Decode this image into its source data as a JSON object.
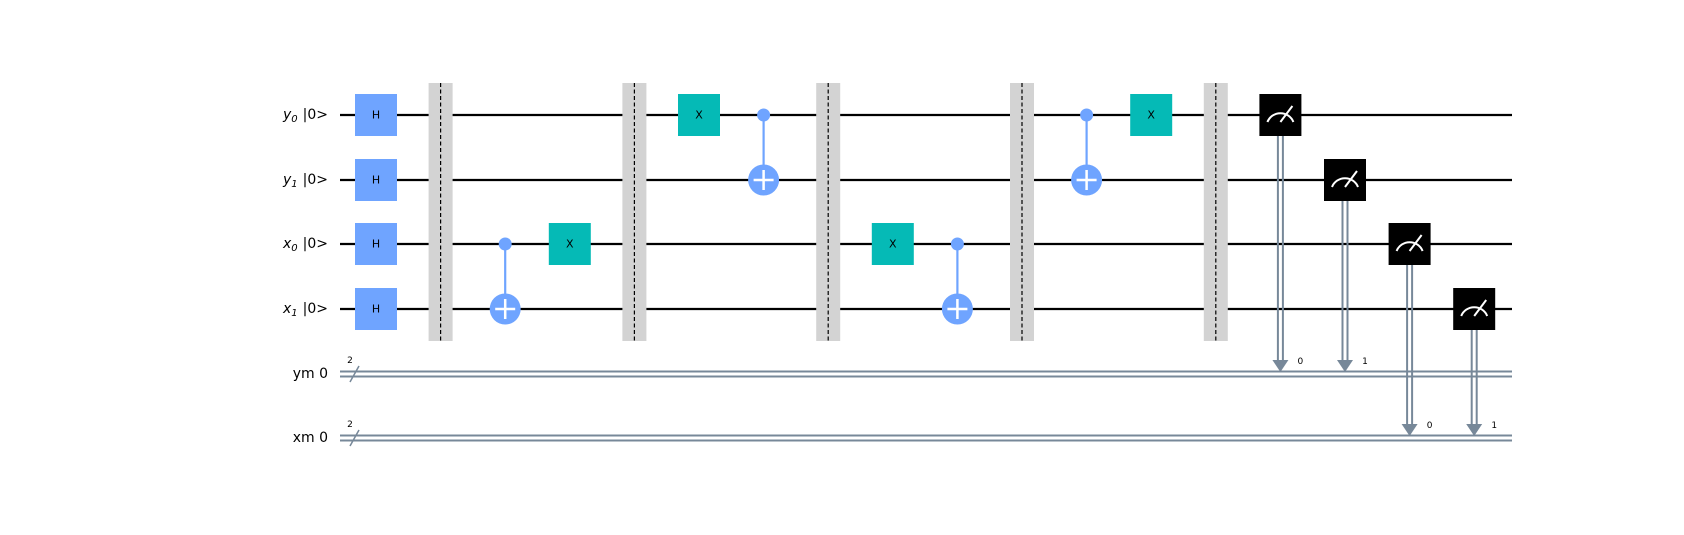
{
  "colors": {
    "wire": "#000000",
    "classical_wire": "#778899",
    "hadamard": "#6fa4ff",
    "x_gate": "#05bab6",
    "control": "#6fa4ff",
    "barrier": "#d3d3d3",
    "measure": "#000000"
  },
  "qubits": [
    {
      "name": "y",
      "index": "0",
      "state": "|0>"
    },
    {
      "name": "y",
      "index": "1",
      "state": "|0>"
    },
    {
      "name": "x",
      "index": "0",
      "state": "|0>"
    },
    {
      "name": "x",
      "index": "1",
      "state": "|0>"
    }
  ],
  "clbits": [
    {
      "label": "ym 0",
      "size": "2"
    },
    {
      "label": "xm 0",
      "size": "2"
    }
  ],
  "gates": {
    "h_label": "H",
    "x_label": "X"
  },
  "circuit": [
    {
      "type": "h",
      "qubit": 0,
      "col": 0
    },
    {
      "type": "h",
      "qubit": 1,
      "col": 0
    },
    {
      "type": "h",
      "qubit": 2,
      "col": 0
    },
    {
      "type": "h",
      "qubit": 3,
      "col": 0
    },
    {
      "type": "barrier",
      "col": 1
    },
    {
      "type": "cx",
      "control": 2,
      "target": 3,
      "col": 2
    },
    {
      "type": "x",
      "qubit": 2,
      "col": 3
    },
    {
      "type": "barrier",
      "col": 4
    },
    {
      "type": "x",
      "qubit": 0,
      "col": 5
    },
    {
      "type": "cx",
      "control": 0,
      "target": 1,
      "col": 6
    },
    {
      "type": "barrier",
      "col": 7
    },
    {
      "type": "x",
      "qubit": 2,
      "col": 8
    },
    {
      "type": "cx",
      "control": 2,
      "target": 3,
      "col": 9
    },
    {
      "type": "barrier",
      "col": 10
    },
    {
      "type": "cx",
      "control": 0,
      "target": 1,
      "col": 11
    },
    {
      "type": "x",
      "qubit": 0,
      "col": 12
    },
    {
      "type": "barrier",
      "col": 13
    },
    {
      "type": "measure",
      "qubit": 0,
      "creg": 0,
      "bit": "0",
      "col": 14
    },
    {
      "type": "measure",
      "qubit": 1,
      "creg": 0,
      "bit": "1",
      "col": 15
    },
    {
      "type": "measure",
      "qubit": 2,
      "creg": 1,
      "bit": "0",
      "col": 16
    },
    {
      "type": "measure",
      "qubit": 3,
      "creg": 1,
      "bit": "1",
      "col": 17
    }
  ]
}
